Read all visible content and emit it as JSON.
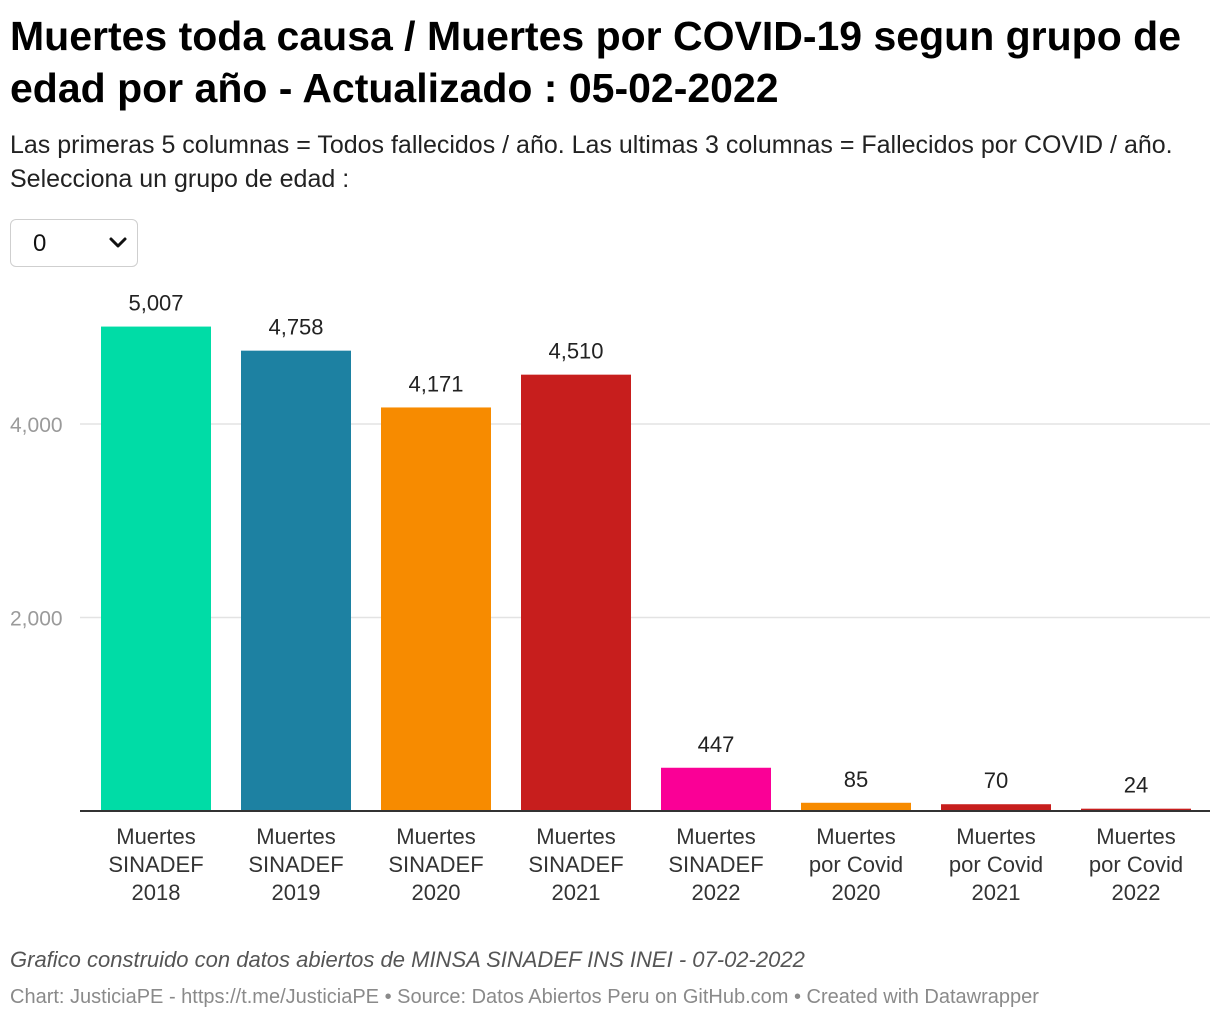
{
  "header": {
    "title": "Muertes toda causa / Muertes por COVID-19 segun grupo de edad por año - Actualizado : 05-02-2022",
    "subtitle": "Las primeras 5 columnas = Todos fallecidos / año. Las ultimas 3 columnas = Fallecidos por COVID / año. Selecciona un grupo de edad :"
  },
  "controls": {
    "age_group_selected": "0",
    "chevron_icon": "chevron-down-icon"
  },
  "chart_data": {
    "type": "bar",
    "categories": [
      [
        "Muertes",
        "SINADEF",
        "2018"
      ],
      [
        "Muertes",
        "SINADEF",
        "2019"
      ],
      [
        "Muertes",
        "SINADEF",
        "2020"
      ],
      [
        "Muertes",
        "SINADEF",
        "2021"
      ],
      [
        "Muertes",
        "SINADEF",
        "2022"
      ],
      [
        "Muertes",
        "por Covid",
        "2020"
      ],
      [
        "Muertes",
        "por Covid",
        "2021"
      ],
      [
        "Muertes",
        "por Covid",
        "2022"
      ]
    ],
    "values": [
      5007,
      4758,
      4171,
      4510,
      447,
      85,
      70,
      24
    ],
    "value_labels": [
      "5,007",
      "4,758",
      "4,171",
      "4,510",
      "447",
      "85",
      "70",
      "24"
    ],
    "colors": [
      "#00dca6",
      "#1d81a2",
      "#f78b00",
      "#c71e1d",
      "#fa0096",
      "#f78b00",
      "#c71e1d",
      "#c71e1d"
    ],
    "yticks": [
      2000,
      4000
    ],
    "ytick_labels": [
      "2,000",
      "4,000"
    ],
    "ylim": [
      0,
      5700
    ],
    "grid": true
  },
  "footer": {
    "notes": "Grafico construido con datos abiertos de MINSA SINADEF INS INEI - 07-02-2022",
    "credit": "Chart: JusticiaPE - https://t.me/JusticiaPE • Source: Datos Abiertos Peru on GitHub.com • Created with Datawrapper"
  }
}
